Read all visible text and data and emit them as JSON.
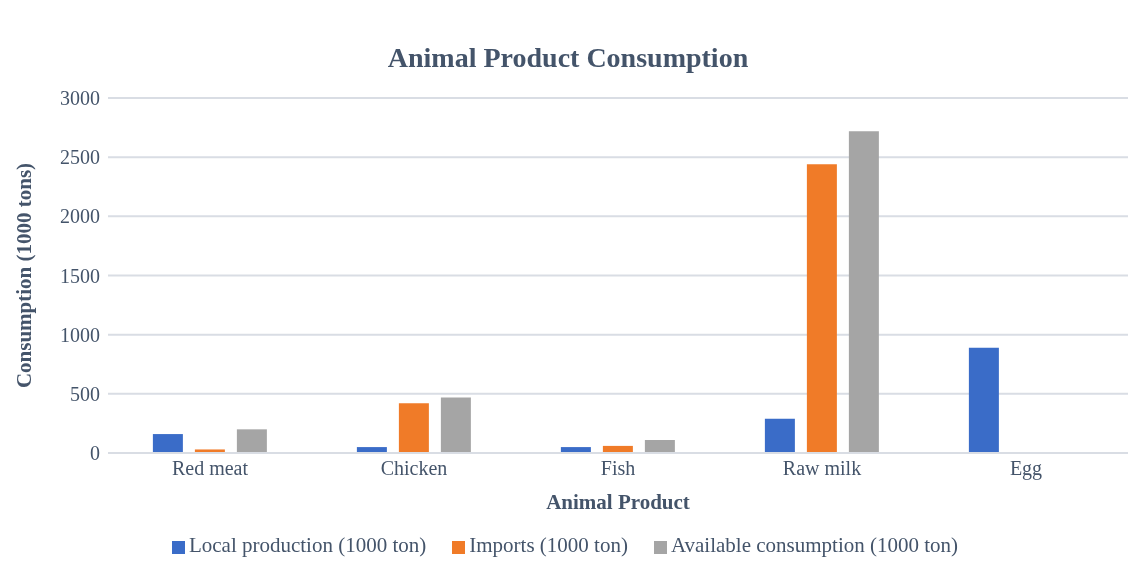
{
  "chart_data": {
    "type": "bar",
    "title": "Animal Product Consumption",
    "xlabel": "Animal Product",
    "ylabel": "Consumption (1000 tons)",
    "categories": [
      "Red meat",
      "Chicken",
      "Fish",
      "Raw milk",
      "Egg"
    ],
    "series": [
      {
        "name": "Local production (1000 ton)",
        "color": "#3a6cc8",
        "values": [
          160,
          50,
          50,
          290,
          890
        ]
      },
      {
        "name": "Imports (1000 ton)",
        "color": "#f07b28",
        "values": [
          30,
          420,
          60,
          2440,
          null
        ]
      },
      {
        "name": "Available consumption (1000 ton)",
        "color": "#a5a5a5",
        "values": [
          200,
          470,
          110,
          2720,
          null
        ]
      }
    ],
    "ylim": [
      0,
      3000
    ],
    "yticks": [
      0,
      500,
      1000,
      1500,
      2000,
      2500,
      3000
    ],
    "grid": "y",
    "legend": "bottom"
  }
}
